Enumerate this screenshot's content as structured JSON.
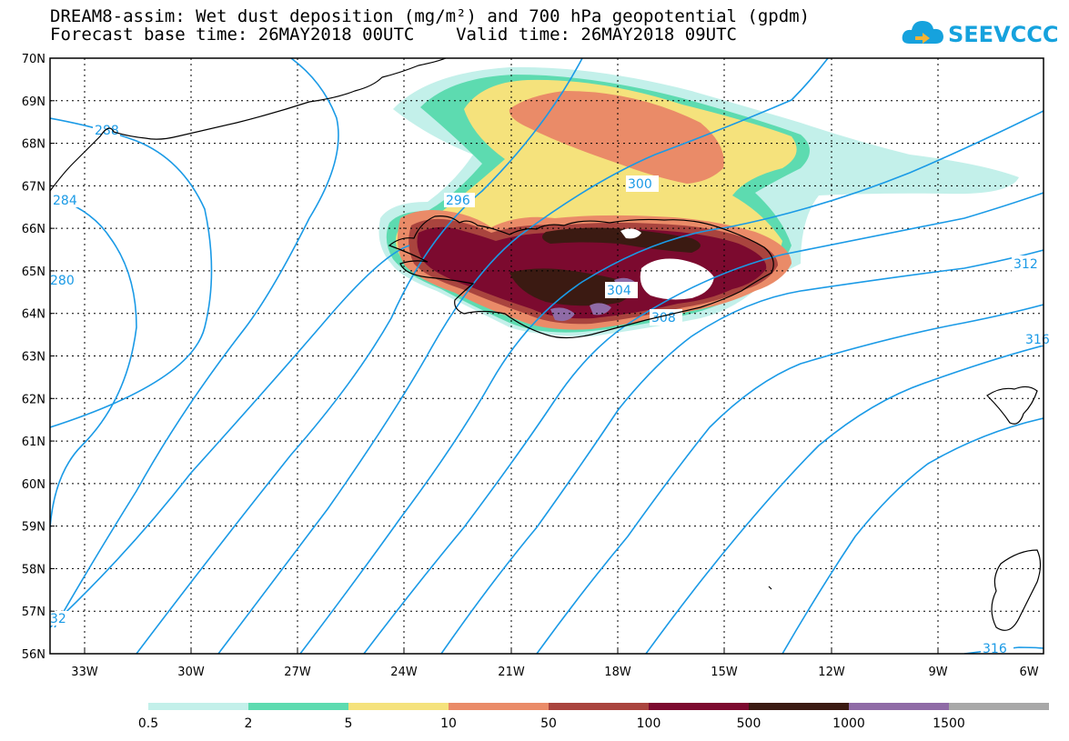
{
  "title_line1": "DREAM8-assim: Wet dust deposition (mg/m²) and 700 hPa geopotential (gpdm)",
  "title_line2": "Forecast base time: 26MAY2018 00UTC    Valid time: 26MAY2018 09UTC",
  "logo_text": "SEEVCCC",
  "lat_labels": [
    "70N",
    "69N",
    "68N",
    "67N",
    "66N",
    "65N",
    "64N",
    "63N",
    "62N",
    "61N",
    "60N",
    "59N",
    "58N",
    "57N",
    "56N"
  ],
  "lon_labels": [
    "33W",
    "30W",
    "27W",
    "24W",
    "21W",
    "18W",
    "15W",
    "12W",
    "9W",
    "6W"
  ],
  "contour_labels": [
    "288",
    "284",
    "280",
    "296",
    "300",
    "304",
    "308",
    "312",
    "316",
    "316",
    "32"
  ],
  "legend": {
    "labels": [
      "0.5",
      "2",
      "5",
      "10",
      "50",
      "100",
      "500",
      "1000",
      "1500"
    ],
    "colors": [
      "#c3f0ea",
      "#5ddbb0",
      "#f5e27c",
      "#ea8b68",
      "#a9443e",
      "#7c0a2f",
      "#3b1a12",
      "#8f6ba6",
      "#a8a8a8"
    ]
  },
  "colors": {
    "contour": "#1a9ae6",
    "coast": "#000000"
  }
}
